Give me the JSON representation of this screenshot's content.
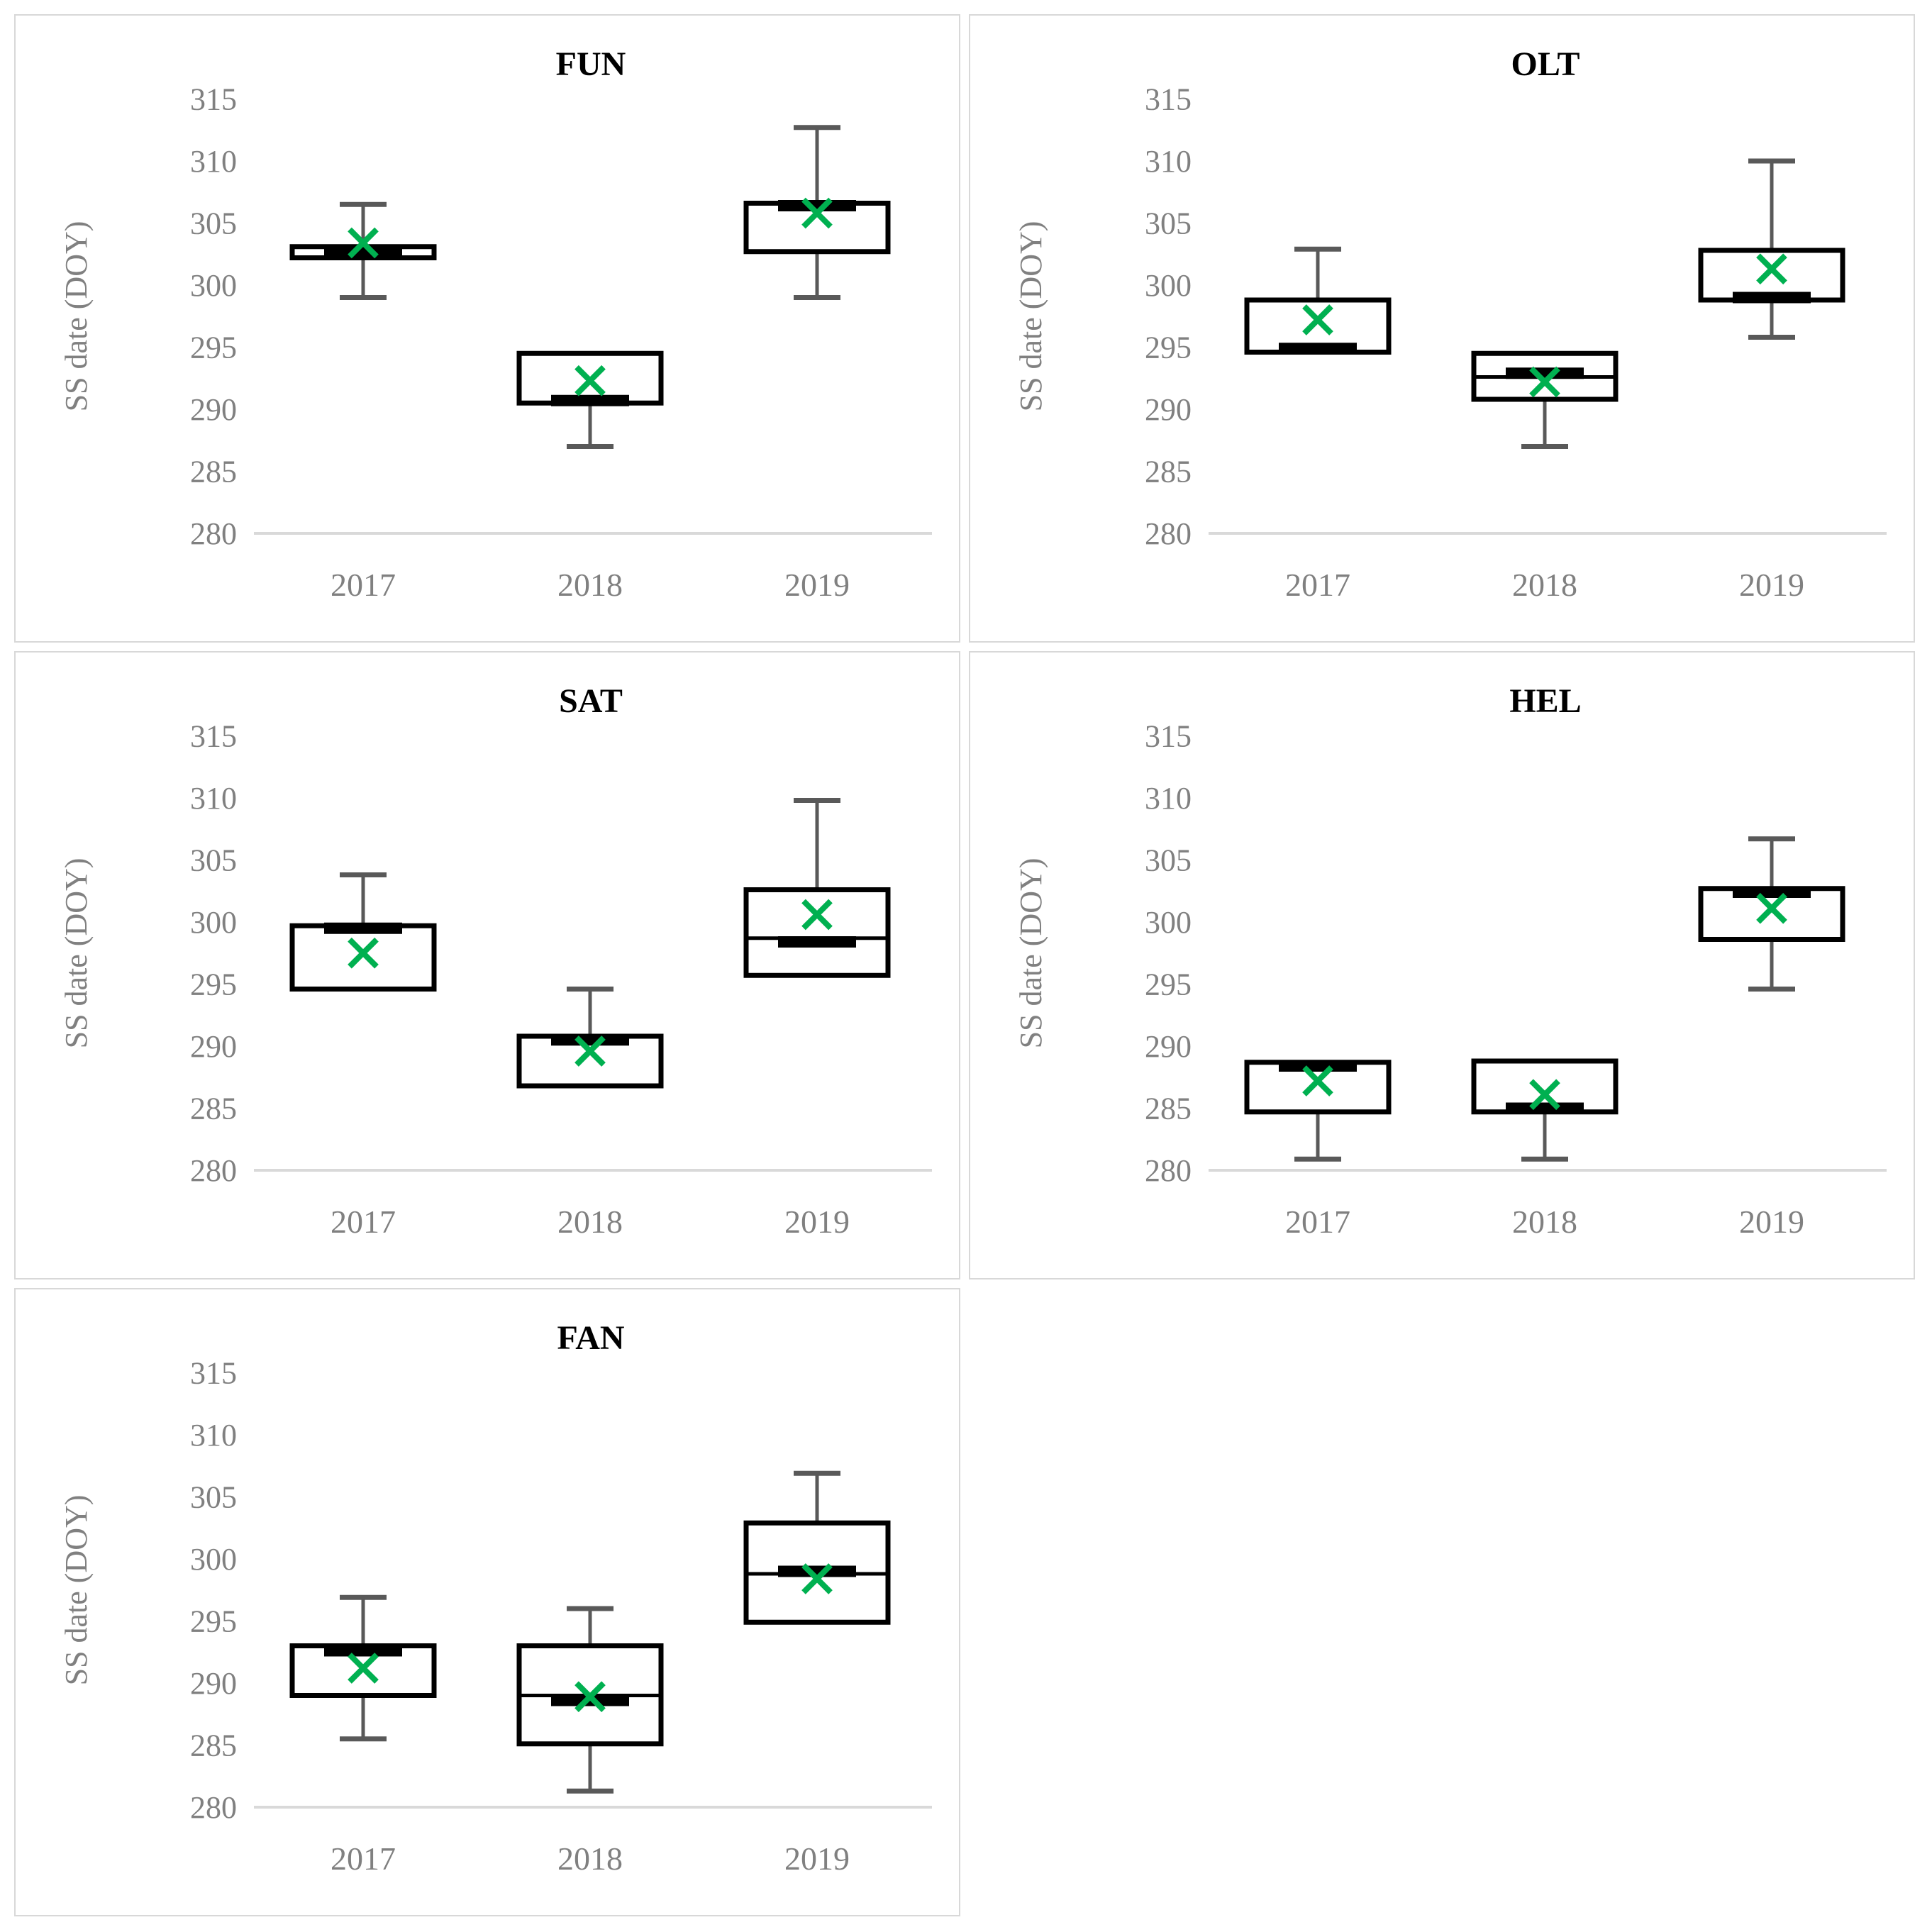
{
  "figure": {
    "description": "Five box-and-whisker panels of sunset/season-start date (day of year) per site and year",
    "panels_order": [
      "FUN",
      "OLT",
      "SAT",
      "HEL",
      "FAN"
    ]
  },
  "axis": {
    "ylabel": "SS date (DOY)",
    "yticks": [
      315,
      310,
      305,
      300,
      295,
      290,
      285,
      280
    ],
    "ylim": [
      280,
      316.5
    ],
    "categories": [
      "2017",
      "2018",
      "2019"
    ]
  },
  "style": {
    "mean_marker_color": "#00B050",
    "box_border_color": "#000000",
    "whisker_color": "#595959",
    "null_whisker_cap_color": "#8c8c8c",
    "axis_line_color": "#d9d9d9",
    "tick_label_color": "#808080",
    "panel_border_color": "#d8d8d8",
    "title_color": "#000000"
  },
  "chart_data": [
    {
      "type": "box",
      "title": "FUN",
      "grid_pos": [
        0,
        0
      ],
      "boxes": [
        {
          "year": "2017",
          "low": 299.0,
          "q1": 302.2,
          "median": 302.6,
          "q3": 303.1,
          "high": 306.5,
          "mean": 303.4
        },
        {
          "year": "2018",
          "low": 287.0,
          "q1": 290.5,
          "median": 290.7,
          "q3": 294.5,
          "high": null,
          "mean": 292.3
        },
        {
          "year": "2019",
          "low": 299.0,
          "q1": 302.7,
          "median": 306.4,
          "q3": 306.6,
          "high": 312.7,
          "mean": 305.8
        }
      ]
    },
    {
      "type": "box",
      "title": "OLT",
      "grid_pos": [
        0,
        1
      ],
      "boxes": [
        {
          "year": "2017",
          "low": null,
          "q1": 294.6,
          "median": 294.9,
          "q3": 298.8,
          "high": 302.9,
          "mean": 297.2
        },
        {
          "year": "2018",
          "low": 287.0,
          "q1": 290.8,
          "divider": 292.6,
          "median": 292.9,
          "q3": 294.5,
          "high": null,
          "mean": 292.2
        },
        {
          "year": "2019",
          "low": 295.8,
          "q1": 298.8,
          "median": 299.0,
          "q3": 302.8,
          "high": 310.0,
          "mean": 301.3
        }
      ]
    },
    {
      "type": "box",
      "title": "SAT",
      "grid_pos": [
        1,
        0
      ],
      "boxes": [
        {
          "year": "2017",
          "low": null,
          "q1": 294.6,
          "median": 299.5,
          "q3": 299.7,
          "high": 303.8,
          "mean": 297.5
        },
        {
          "year": "2018",
          "low": null,
          "q1": 286.8,
          "median": 290.5,
          "q3": 290.8,
          "high": 294.6,
          "mean": 289.6
        },
        {
          "year": "2019",
          "low": null,
          "q1": 295.7,
          "divider": 298.7,
          "median": 298.4,
          "q3": 302.6,
          "high": 309.8,
          "mean": 300.6
        }
      ]
    },
    {
      "type": "box",
      "title": "HEL",
      "grid_pos": [
        1,
        1
      ],
      "boxes": [
        {
          "year": "2017",
          "low": 280.9,
          "q1": 284.7,
          "median": 288.4,
          "q3": 288.7,
          "high": null,
          "mean": 287.2
        },
        {
          "year": "2018",
          "low": 280.9,
          "q1": 284.7,
          "median": 285.0,
          "q3": 288.8,
          "high": null,
          "mean": 286.1
        },
        {
          "year": "2019",
          "low": 294.6,
          "q1": 298.6,
          "median": 302.4,
          "q3": 302.7,
          "high": 306.7,
          "mean": 301.1
        }
      ]
    },
    {
      "type": "box",
      "title": "FAN",
      "grid_pos": [
        2,
        0
      ],
      "boxes": [
        {
          "year": "2017",
          "low": 285.5,
          "q1": 289.0,
          "median": 292.6,
          "q3": 293.0,
          "high": 296.9,
          "mean": 291.2
        },
        {
          "year": "2018",
          "low": 281.3,
          "q1": 285.1,
          "divider": 289.0,
          "median": 288.6,
          "q3": 293.0,
          "high": 296.0,
          "mean": 288.9
        },
        {
          "year": "2019",
          "low": null,
          "q1": 294.9,
          "divider": 298.8,
          "median": 299.0,
          "q3": 302.9,
          "high": 306.9,
          "mean": 298.4
        }
      ]
    }
  ]
}
